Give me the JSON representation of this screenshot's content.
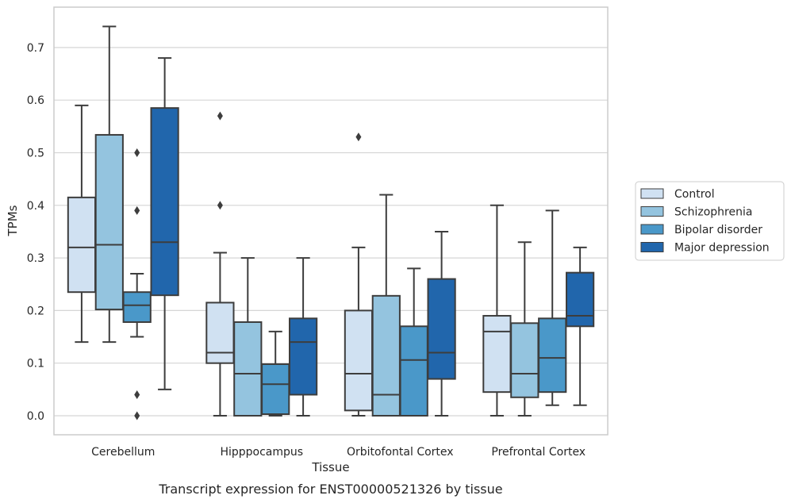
{
  "caption": "Transcript expression for ENST00000521326 by tissue",
  "chart_data": {
    "type": "box",
    "title": "",
    "xlabel": "Tissue",
    "ylabel": "TPMs",
    "ylim": [
      -0.036,
      0.775
    ],
    "yticks": [
      "0.0",
      "0.1",
      "0.2",
      "0.3",
      "0.4",
      "0.5",
      "0.6",
      "0.7"
    ],
    "ytick_values": [
      0,
      0.1,
      0.2,
      0.3,
      0.4,
      0.5,
      0.6,
      0.7
    ],
    "grid": "horizontal",
    "legend_position": "right",
    "categories": [
      "Cerebellum",
      "Hipppocampus",
      "Orbitofontal Cortex",
      "Prefrontal Cortex"
    ],
    "series": [
      {
        "name": "Control",
        "color": "#d0e1f2",
        "boxes": [
          {
            "whisker_low": 0.14,
            "q1": 0.235,
            "median": 0.32,
            "q3": 0.415,
            "whisker_high": 0.59,
            "outliers": []
          },
          {
            "whisker_low": 0.0,
            "q1": 0.1,
            "median": 0.12,
            "q3": 0.215,
            "whisker_high": 0.31,
            "outliers": [
              0.4,
              0.57
            ]
          },
          {
            "whisker_low": 0.0,
            "q1": 0.01,
            "median": 0.08,
            "q3": 0.2,
            "whisker_high": 0.32,
            "outliers": [
              0.53
            ]
          },
          {
            "whisker_low": 0.0,
            "q1": 0.045,
            "median": 0.16,
            "q3": 0.19,
            "whisker_high": 0.4,
            "outliers": []
          }
        ]
      },
      {
        "name": "Schizophrenia",
        "color": "#94c4df",
        "boxes": [
          {
            "whisker_low": 0.14,
            "q1": 0.202,
            "median": 0.325,
            "q3": 0.534,
            "whisker_high": 0.74,
            "outliers": []
          },
          {
            "whisker_low": 0.0,
            "q1": 0.0,
            "median": 0.08,
            "q3": 0.178,
            "whisker_high": 0.3,
            "outliers": []
          },
          {
            "whisker_low": 0.0,
            "q1": 0.0,
            "median": 0.04,
            "q3": 0.228,
            "whisker_high": 0.42,
            "outliers": []
          },
          {
            "whisker_low": 0.0,
            "q1": 0.035,
            "median": 0.08,
            "q3": 0.176,
            "whisker_high": 0.33,
            "outliers": []
          }
        ]
      },
      {
        "name": "Bipolar disorder",
        "color": "#4a98c9",
        "boxes": [
          {
            "whisker_low": 0.15,
            "q1": 0.178,
            "median": 0.21,
            "q3": 0.235,
            "whisker_high": 0.27,
            "outliers": [
              0.0,
              0.04,
              0.39,
              0.5
            ]
          },
          {
            "whisker_low": 0.0,
            "q1": 0.003,
            "median": 0.06,
            "q3": 0.098,
            "whisker_high": 0.16,
            "outliers": []
          },
          {
            "whisker_low": 0.0,
            "q1": 0.0,
            "median": 0.106,
            "q3": 0.17,
            "whisker_high": 0.28,
            "outliers": []
          },
          {
            "whisker_low": 0.02,
            "q1": 0.045,
            "median": 0.11,
            "q3": 0.185,
            "whisker_high": 0.39,
            "outliers": []
          }
        ]
      },
      {
        "name": "Major depression",
        "color": "#2166ac",
        "boxes": [
          {
            "whisker_low": 0.05,
            "q1": 0.229,
            "median": 0.33,
            "q3": 0.585,
            "whisker_high": 0.68,
            "outliers": []
          },
          {
            "whisker_low": 0.0,
            "q1": 0.04,
            "median": 0.14,
            "q3": 0.185,
            "whisker_high": 0.3,
            "outliers": []
          },
          {
            "whisker_low": 0.0,
            "q1": 0.07,
            "median": 0.12,
            "q3": 0.26,
            "whisker_high": 0.35,
            "outliers": []
          },
          {
            "whisker_low": 0.02,
            "q1": 0.17,
            "median": 0.19,
            "q3": 0.272,
            "whisker_high": 0.32,
            "outliers": []
          }
        ]
      }
    ],
    "colors": {
      "grid": "#d5d5d5",
      "axes_border": "#cccccc",
      "box_edge": "#3d3d3d",
      "legend_border": "#cccccc"
    }
  }
}
